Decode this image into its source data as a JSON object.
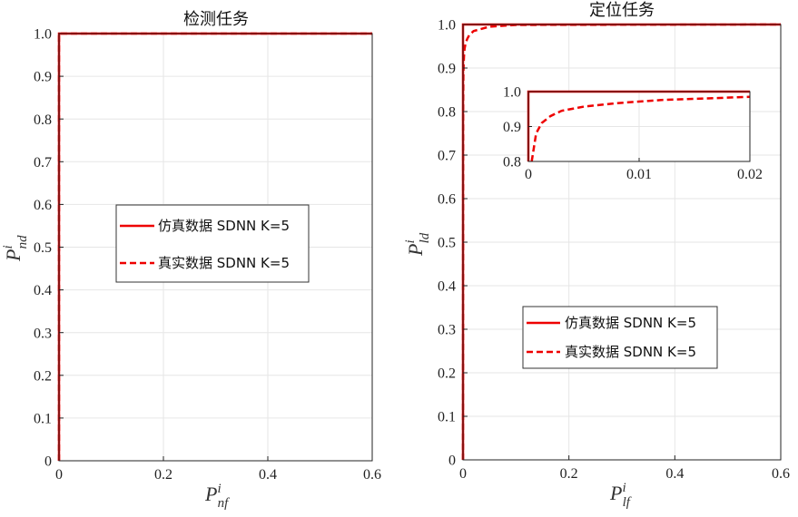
{
  "chart_data": [
    {
      "type": "line",
      "title": "检测任务",
      "xlabel": {
        "base": "P",
        "sup": "i",
        "sub": "nf"
      },
      "ylabel": {
        "base": "P",
        "sup": "i",
        "sub": "nd"
      },
      "xlim": [
        0,
        0.6
      ],
      "ylim": [
        0,
        1.0
      ],
      "xticks": [
        0,
        0.2,
        0.4,
        0.6
      ],
      "xtick_labels": [
        "0",
        "0.2",
        "0.4",
        "0.6"
      ],
      "yticks": [
        0,
        0.1,
        0.2,
        0.3,
        0.4,
        0.5,
        0.6,
        0.7,
        0.8,
        0.9,
        1.0
      ],
      "ytick_labels": [
        "0",
        "0.1",
        "0.2",
        "0.3",
        "0.4",
        "0.5",
        "0.6",
        "0.7",
        "0.8",
        "0.9",
        "1.0"
      ],
      "grid": true,
      "legend_position": "center",
      "series": [
        {
          "name": "仿真数据 SDNN K=5",
          "style": "solid",
          "color": "#ee0000",
          "x": [
            0,
            0,
            0.6
          ],
          "y": [
            0,
            1.0,
            1.0
          ]
        },
        {
          "name": "真实数据 SDNN K=5",
          "style": "dashed",
          "color": "#ee0000",
          "x": [
            0,
            0,
            0.6
          ],
          "y": [
            0,
            1.0,
            1.0
          ]
        }
      ]
    },
    {
      "type": "line",
      "title": "定位任务",
      "xlabel": {
        "base": "P",
        "sup": "i",
        "sub": "lf"
      },
      "ylabel": {
        "base": "P",
        "sup": "i",
        "sub": "ld"
      },
      "xlim": [
        0,
        0.6
      ],
      "ylim": [
        0,
        1.0
      ],
      "xticks": [
        0,
        0.2,
        0.4,
        0.6
      ],
      "xtick_labels": [
        "0",
        "0.2",
        "0.4",
        "0.6"
      ],
      "yticks": [
        0,
        0.1,
        0.2,
        0.3,
        0.4,
        0.5,
        0.6,
        0.7,
        0.8,
        0.9,
        1.0
      ],
      "ytick_labels": [
        "0",
        "0.1",
        "0.2",
        "0.3",
        "0.4",
        "0.5",
        "0.6",
        "0.7",
        "0.8",
        "0.9",
        "1.0"
      ],
      "grid": true,
      "legend_position": "lower-center",
      "series": [
        {
          "name": "仿真数据 SDNN K=5",
          "style": "solid",
          "color": "#ee0000",
          "x": [
            0,
            0,
            0.6
          ],
          "y": [
            0,
            1.0,
            1.0
          ]
        },
        {
          "name": "真实数据 SDNN K=5",
          "style": "dashed",
          "color": "#ee0000",
          "x": [
            0,
            0.0003,
            0.0007,
            0.0012,
            0.002,
            0.003,
            0.005,
            0.008,
            0.012,
            0.02,
            0.05,
            0.1,
            0.6
          ],
          "y": [
            0,
            0.8,
            0.88,
            0.91,
            0.93,
            0.945,
            0.957,
            0.967,
            0.976,
            0.985,
            0.995,
            0.999,
            1.0
          ]
        }
      ],
      "inset": {
        "xlim": [
          0,
          0.02
        ],
        "ylim": [
          0.8,
          1.0
        ],
        "xticks": [
          0,
          0.01,
          0.02
        ],
        "xtick_labels": [
          "0",
          "0.01",
          "0.02"
        ],
        "yticks": [
          0.8,
          0.9,
          1.0
        ],
        "ytick_labels": [
          "0.8",
          "0.9",
          "1.0"
        ],
        "grid": true
      }
    }
  ]
}
